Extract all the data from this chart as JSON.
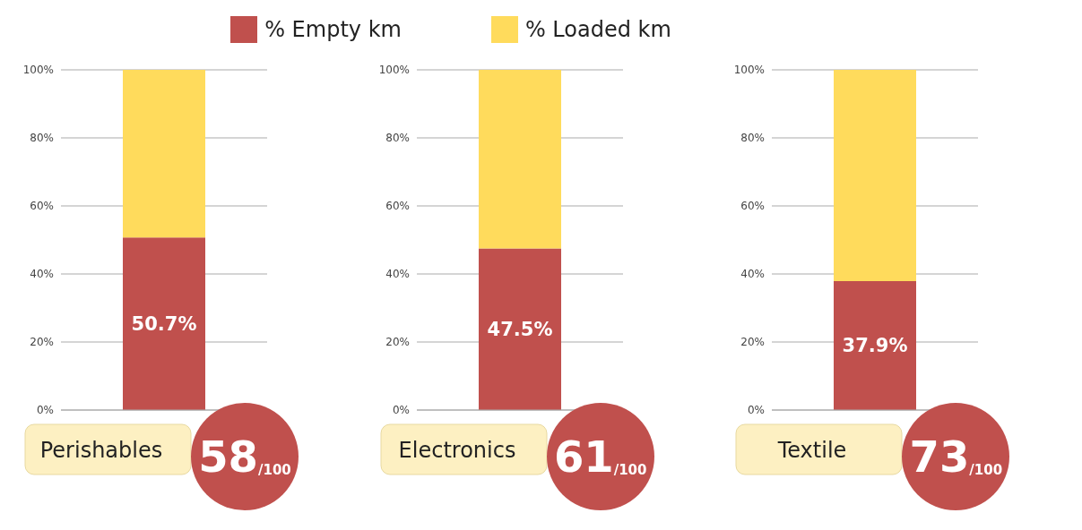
{
  "chart_data": [
    {
      "type": "bar",
      "stacked": true,
      "categories": [
        "Perishables"
      ],
      "legend": "top",
      "grid": "y",
      "ylim": [
        0,
        100
      ],
      "yticks": [
        {
          "value": 0,
          "label": "0%"
        },
        {
          "value": 20,
          "label": "20%"
        },
        {
          "value": 40,
          "label": "40%"
        },
        {
          "value": 60,
          "label": "60%"
        },
        {
          "value": 80,
          "label": "80%"
        },
        {
          "value": 100,
          "label": "100%"
        }
      ],
      "series": [
        {
          "name": "% Empty km",
          "color": "#c0504d",
          "values": [
            50.7
          ],
          "value_labels": [
            "50.7%"
          ]
        },
        {
          "name": "% Loaded km",
          "color": "#ffdb5c",
          "values": [
            49.3
          ],
          "value_labels": [
            null
          ]
        }
      ],
      "annotations": [
        "58$_{/100}$"
      ]
    },
    {
      "type": "bar",
      "stacked": true,
      "categories": [
        "Electronics"
      ],
      "grid": "y",
      "ylim": [
        0,
        100
      ],
      "yticks": [
        {
          "value": 0,
          "label": "0%"
        },
        {
          "value": 20,
          "label": "20%"
        },
        {
          "value": 40,
          "label": "40%"
        },
        {
          "value": 60,
          "label": "60%"
        },
        {
          "value": 80,
          "label": "80%"
        },
        {
          "value": 100,
          "label": "100%"
        }
      ],
      "series": [
        {
          "color": "#c0504d",
          "values": [
            47.5
          ],
          "value_labels": [
            "47.5%"
          ]
        },
        {
          "color": "#ffdb5c",
          "values": [
            52.5
          ],
          "value_labels": [
            null
          ]
        }
      ],
      "annotations": [
        "61$_{/100}$"
      ]
    },
    {
      "type": "bar",
      "stacked": true,
      "categories": [
        "Textile"
      ],
      "grid": "y",
      "ylim": [
        0,
        100
      ],
      "yticks": [
        {
          "value": 0,
          "label": "0%"
        },
        {
          "value": 20,
          "label": "20%"
        },
        {
          "value": 40,
          "label": "40%"
        },
        {
          "value": 60,
          "label": "60%"
        },
        {
          "value": 80,
          "label": "80%"
        },
        {
          "value": 100,
          "label": "100%"
        }
      ],
      "series": [
        {
          "color": "#c0504d",
          "values": [
            37.9
          ],
          "value_labels": [
            "37.9%"
          ]
        },
        {
          "color": "#ffdb5c",
          "values": [
            62.1
          ],
          "value_labels": [
            null
          ]
        }
      ],
      "annotations": [
        "73$_{/100}$"
      ]
    }
  ]
}
